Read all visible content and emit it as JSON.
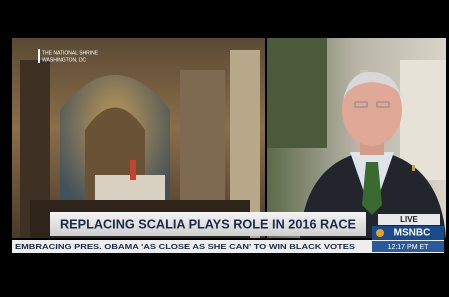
{
  "location": {
    "line1": "THE NATIONAL SHRINE",
    "line2": "WASHINGTON, DC"
  },
  "headline": "REPLACING SCALIA PLAYS ROLE IN 2016 RACE",
  "live": "LIVE",
  "network": "MSNBC",
  "ticker": "EMBRACING PRES. OBAMA 'AS CLOSE AS SHE CAN' TO WIN BLACK VOTES",
  "time": "12:17 PM ET"
}
